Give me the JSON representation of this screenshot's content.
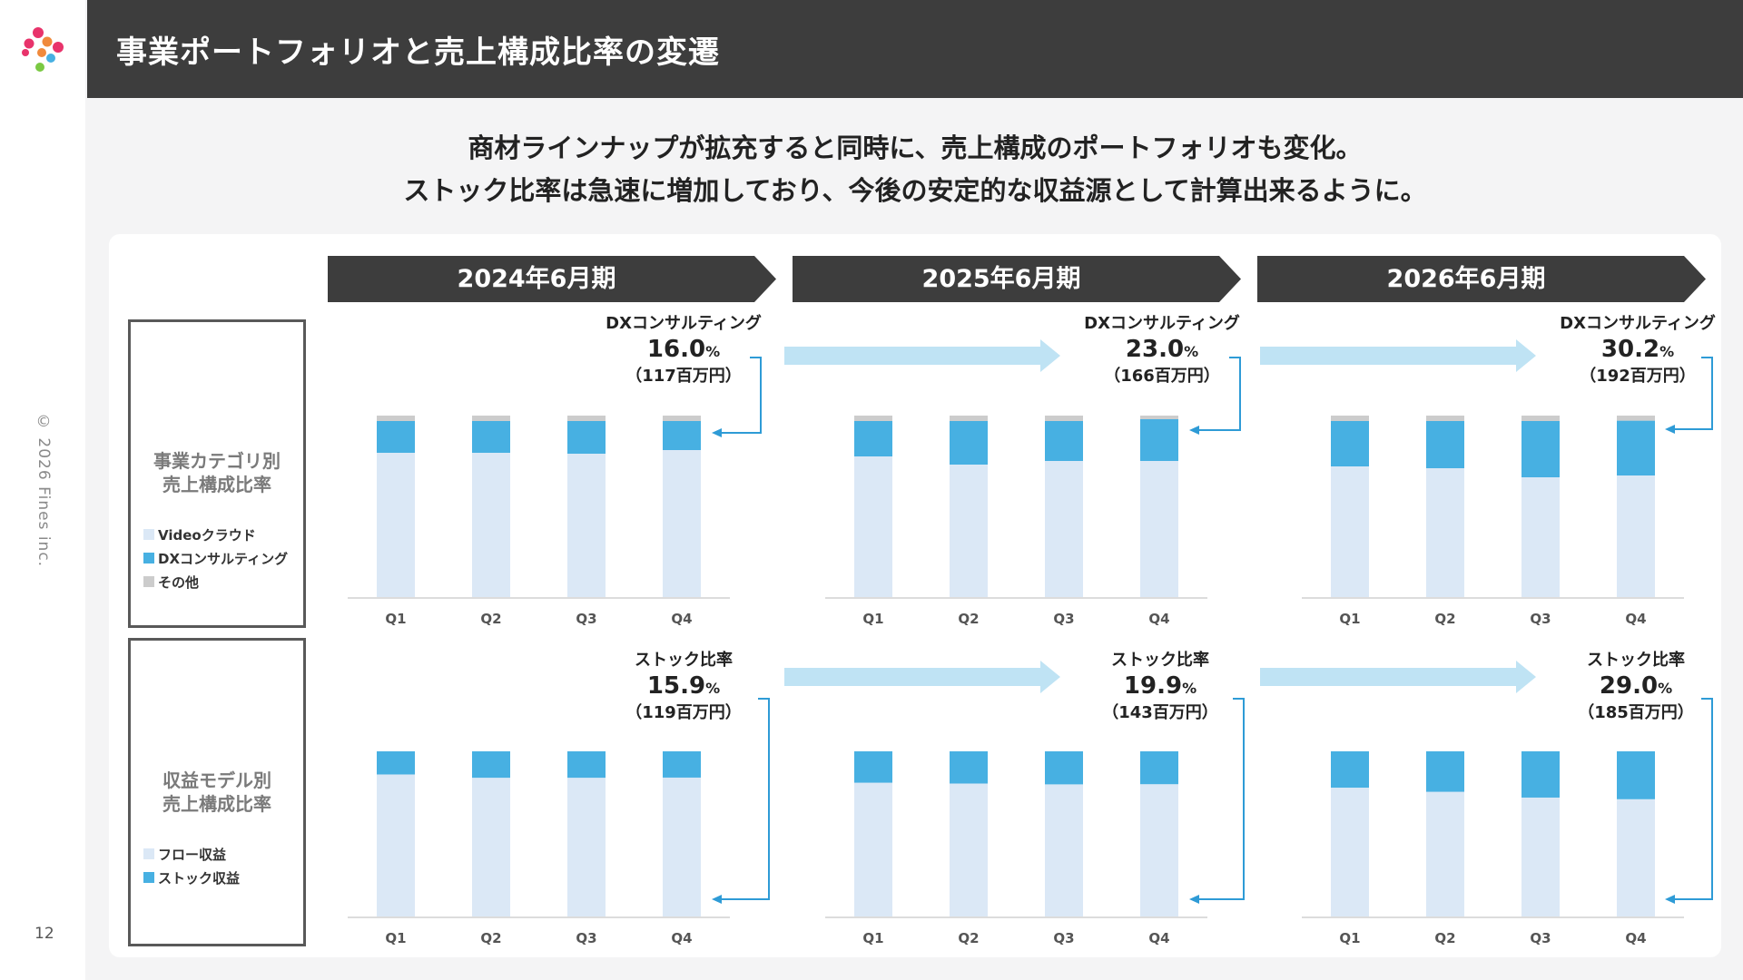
{
  "page": {
    "title": "事業ポートフォリオと売上構成比率の変遷",
    "subtitle_lines": [
      "商材ラインナップが拡充すると同時に、売上構成のポートフォリオも変化。",
      "ストック比率は急速に増加しており、今後の安定的な収益源として計算出来るように。"
    ],
    "copyright": "© 2026 Fines inc.",
    "page_number": "12"
  },
  "colors": {
    "header_bg": "#3d3d3d",
    "light_blue": "#dbe8f6",
    "mid_blue": "#47b0e2",
    "gray": "#cccccc",
    "arrow_blue": "#bfe3f4",
    "connector_blue": "#2e9bd6",
    "logo": [
      "#e8336b",
      "#f08a3c",
      "#47b0e2",
      "#7ac943"
    ]
  },
  "periods": [
    "2024年6月期",
    "2025年6月期",
    "2026年6月期"
  ],
  "legend1": {
    "title_lines": [
      "事業カテゴリ別",
      "売上構成比率"
    ],
    "items": [
      "Videoクラウド",
      "DXコンサルティング",
      "その他"
    ]
  },
  "legend2": {
    "title_lines": [
      "収益モデル別",
      "売上構成比率"
    ],
    "items": [
      "フロー収益",
      "ストック収益"
    ]
  },
  "annotations_top": [
    {
      "label": "DXコンサルティング",
      "pct": "16.0",
      "unit": "%",
      "amount": "（117百万円）"
    },
    {
      "label": "DXコンサルティング",
      "pct": "23.0",
      "unit": "%",
      "amount": "（166百万円）"
    },
    {
      "label": "DXコンサルティング",
      "pct": "30.2",
      "unit": "%",
      "amount": "（192百万円）"
    }
  ],
  "annotations_bottom": [
    {
      "label": "ストック比率",
      "pct": "15.9",
      "unit": "%",
      "amount": "（119百万円）"
    },
    {
      "label": "ストック比率",
      "pct": "19.9",
      "unit": "%",
      "amount": "（143百万円）"
    },
    {
      "label": "ストック比率",
      "pct": "29.0",
      "unit": "%",
      "amount": "（185百万円）"
    }
  ],
  "chart_data": [
    {
      "type": "bar",
      "stacked": true,
      "normalized_100": true,
      "categories": [
        "Q1",
        "Q2",
        "Q3",
        "Q4",
        "Q1",
        "Q2",
        "Q3",
        "Q4",
        "Q1",
        "Q2",
        "Q3",
        "Q4"
      ],
      "groups": [
        "2024年6月期",
        "2025年6月期",
        "2026年6月期"
      ],
      "series": [
        {
          "name": "Videoクラウド",
          "values": [
            79.5,
            79.5,
            79,
            81,
            77.5,
            73,
            75,
            75,
            72,
            71,
            66,
            67
          ]
        },
        {
          "name": "DXコンサルティング",
          "values": [
            17.5,
            17.5,
            18,
            16,
            19.5,
            24,
            22,
            23,
            25,
            26,
            31,
            30.2
          ]
        },
        {
          "name": "その他",
          "values": [
            3,
            3,
            3,
            3,
            3,
            3,
            3,
            2,
            3,
            3,
            3,
            2.8
          ]
        }
      ],
      "ylim": [
        0,
        100
      ],
      "legend": "left-box"
    },
    {
      "type": "bar",
      "stacked": true,
      "normalized_100": true,
      "categories": [
        "Q1",
        "Q2",
        "Q3",
        "Q4",
        "Q1",
        "Q2",
        "Q3",
        "Q4",
        "Q1",
        "Q2",
        "Q3",
        "Q4"
      ],
      "groups": [
        "2024年6月期",
        "2025年6月期",
        "2026年6月期"
      ],
      "series": [
        {
          "name": "フロー収益",
          "values": [
            86,
            84,
            84,
            84.1,
            81,
            80.5,
            80,
            80.1,
            78,
            75.5,
            72,
            71
          ]
        },
        {
          "name": "ストック収益",
          "values": [
            14,
            16,
            16,
            15.9,
            19,
            19.5,
            20,
            19.9,
            22,
            24.5,
            28,
            29.0
          ]
        }
      ],
      "ylim": [
        0,
        100
      ],
      "legend": "left-box"
    }
  ]
}
